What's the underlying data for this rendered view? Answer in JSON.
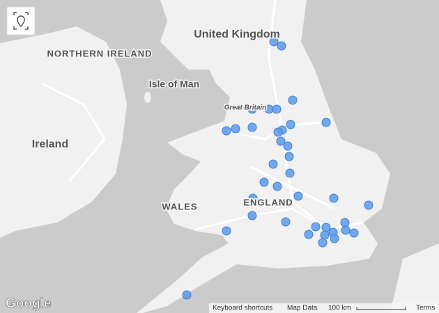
{
  "map": {
    "labels": {
      "country": "United Kingdom",
      "northern_ireland": "NORTHERN IRELAND",
      "isle_of_man": "Isle of Man",
      "great_britain": "Great Britain",
      "ireland": "Ireland",
      "wales": "WALES",
      "england": "ENGLAND"
    },
    "logo": "Google",
    "footer": {
      "shortcuts": "Keyboard shortcuts",
      "map_data": "Map Data",
      "scale": "100 km",
      "terms": "Terms"
    }
  }
}
